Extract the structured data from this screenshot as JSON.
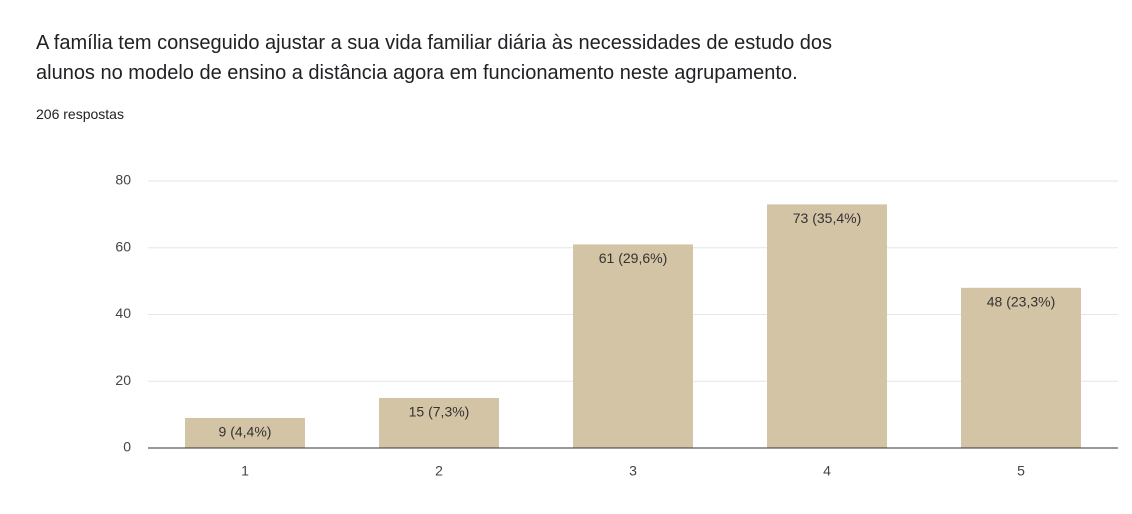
{
  "chart_data": {
    "type": "bar",
    "title": "A família tem conseguido ajustar a sua vida familiar diária às necessidades de estudo dos alunos no modelo de ensino a distância agora em funcionamento neste agrupamento.",
    "subtitle": "206 respostas",
    "categories": [
      "1",
      "2",
      "3",
      "4",
      "5"
    ],
    "values": [
      9,
      15,
      61,
      73,
      48
    ],
    "value_labels": [
      "9 (4,4%)",
      "15 (7,3%)",
      "61 (29,6%)",
      "73 (35,4%)",
      "48 (23,3%)"
    ],
    "color": "#d3c4a5",
    "ylim": [
      0,
      80
    ],
    "yticks": [
      0,
      20,
      40,
      60,
      80
    ],
    "grid": true
  }
}
